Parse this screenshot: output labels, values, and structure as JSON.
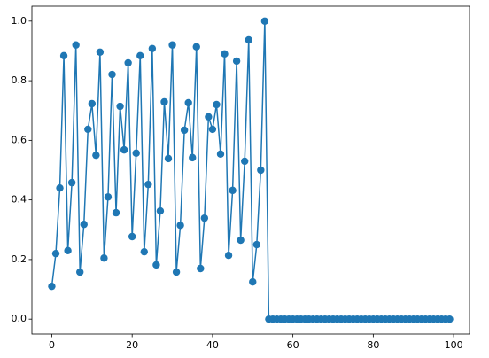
{
  "chart_data": {
    "type": "line",
    "color": "#1f77b4",
    "marker": "circle",
    "x": [
      0,
      1,
      2,
      3,
      4,
      5,
      6,
      7,
      8,
      9,
      10,
      11,
      12,
      13,
      14,
      15,
      16,
      17,
      18,
      19,
      20,
      21,
      22,
      23,
      24,
      25,
      26,
      27,
      28,
      29,
      30,
      31,
      32,
      33,
      34,
      35,
      36,
      37,
      38,
      39,
      40,
      41,
      42,
      43,
      44,
      45,
      46,
      47,
      48,
      49,
      50,
      51,
      52,
      53,
      54,
      55,
      56,
      57,
      58,
      59,
      60,
      61,
      62,
      63,
      64,
      65,
      66,
      67,
      68,
      69,
      70,
      71,
      72,
      73,
      74,
      75,
      76,
      77,
      78,
      79,
      80,
      81,
      82,
      83,
      84,
      85,
      86,
      87,
      88,
      89,
      90,
      91,
      92,
      93,
      94,
      95,
      96,
      97,
      98,
      99
    ],
    "values": [
      0.11,
      0.22,
      0.44,
      0.884,
      0.23,
      0.458,
      0.92,
      0.158,
      0.318,
      0.637,
      0.723,
      0.55,
      0.896,
      0.205,
      0.41,
      0.821,
      0.357,
      0.714,
      0.568,
      0.86,
      0.277,
      0.557,
      0.884,
      0.226,
      0.452,
      0.908,
      0.182,
      0.363,
      0.729,
      0.539,
      0.92,
      0.158,
      0.315,
      0.634,
      0.726,
      0.542,
      0.914,
      0.17,
      0.339,
      0.679,
      0.637,
      0.72,
      0.554,
      0.89,
      0.214,
      0.432,
      0.866,
      0.265,
      0.53,
      0.937,
      0.125,
      0.25,
      0.5,
      1.0,
      0,
      0,
      0,
      0,
      0,
      0,
      0,
      0,
      0,
      0,
      0,
      0,
      0,
      0,
      0,
      0,
      0,
      0,
      0,
      0,
      0,
      0,
      0,
      0,
      0,
      0,
      0,
      0,
      0,
      0,
      0,
      0,
      0,
      0,
      0,
      0,
      0,
      0,
      0,
      0,
      0,
      0,
      0,
      0,
      0,
      0
    ],
    "xlim": [
      -4.95,
      103.95
    ],
    "ylim": [
      -0.05,
      1.05
    ],
    "xticks": [
      0,
      20,
      40,
      60,
      80,
      100
    ],
    "yticks": [
      {
        "value": 0,
        "label": "0.0"
      },
      0.2,
      0.4,
      0.6,
      0.8,
      {
        "value": 1,
        "label": "1.0"
      }
    ]
  }
}
